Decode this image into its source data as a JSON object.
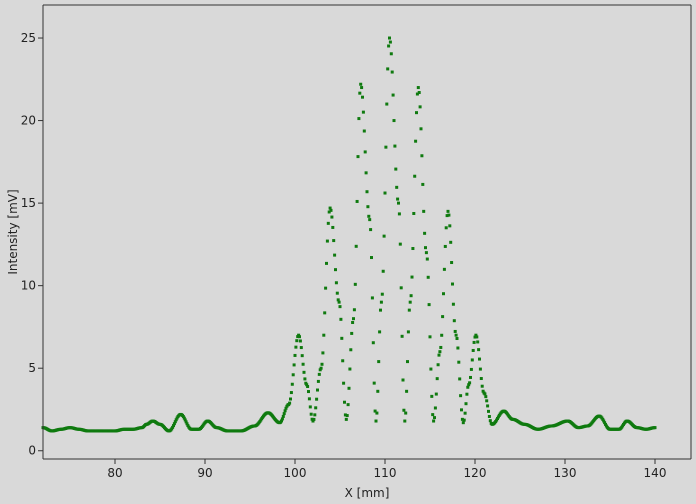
{
  "chart_data": {
    "type": "scatter",
    "xlabel": "X [mm]",
    "ylabel": "Intensity [mV]",
    "xlim": [
      72,
      144
    ],
    "ylim": [
      -0.5,
      27
    ],
    "xticks": [
      80,
      90,
      100,
      110,
      120,
      130,
      140
    ],
    "yticks": [
      0,
      5,
      10,
      15,
      20,
      25
    ],
    "grid": false,
    "legend": "none",
    "series_color": "#0f7a0f",
    "background": "#d9d9d9",
    "x_range": [
      72,
      140
    ],
    "x_step": 0.1,
    "profile_points": [
      [
        72.0,
        1.4
      ],
      [
        73.0,
        1.2
      ],
      [
        74.0,
        1.3
      ],
      [
        75.0,
        1.4
      ],
      [
        76.0,
        1.3
      ],
      [
        77.0,
        1.2
      ],
      [
        80.0,
        1.2
      ],
      [
        81.0,
        1.3
      ],
      [
        82.0,
        1.3
      ],
      [
        83.0,
        1.4
      ],
      [
        83.5,
        1.6
      ],
      [
        84.2,
        1.8
      ],
      [
        85.0,
        1.6
      ],
      [
        86.0,
        1.2
      ],
      [
        87.3,
        2.2
      ],
      [
        88.5,
        1.3
      ],
      [
        89.3,
        1.3
      ],
      [
        90.3,
        1.8
      ],
      [
        91.3,
        1.4
      ],
      [
        92.5,
        1.2
      ],
      [
        94.0,
        1.2
      ],
      [
        95.5,
        1.5
      ],
      [
        97.0,
        2.3
      ],
      [
        98.3,
        1.7
      ],
      [
        99.3,
        2.8
      ],
      [
        100.4,
        7.0
      ],
      [
        101.3,
        4.0
      ],
      [
        102.0,
        1.8
      ],
      [
        102.9,
        5.0
      ],
      [
        103.9,
        14.7
      ],
      [
        104.9,
        9.0
      ],
      [
        105.7,
        1.9
      ],
      [
        106.5,
        8.0
      ],
      [
        107.3,
        22.2
      ],
      [
        108.3,
        14.0
      ],
      [
        109.0,
        1.8
      ],
      [
        109.6,
        9.0
      ],
      [
        110.5,
        25.0
      ],
      [
        111.5,
        15.0
      ],
      [
        112.2,
        1.8
      ],
      [
        112.8,
        9.0
      ],
      [
        113.7,
        22.0
      ],
      [
        114.6,
        12.0
      ],
      [
        115.4,
        1.8
      ],
      [
        116.1,
        6.0
      ],
      [
        117.0,
        14.5
      ],
      [
        117.9,
        7.0
      ],
      [
        118.7,
        1.7
      ],
      [
        119.3,
        4.0
      ],
      [
        120.1,
        7.0
      ],
      [
        121.0,
        3.5
      ],
      [
        121.9,
        1.6
      ],
      [
        123.2,
        2.4
      ],
      [
        124.2,
        1.9
      ],
      [
        125.5,
        1.6
      ],
      [
        127.0,
        1.3
      ],
      [
        128.5,
        1.5
      ],
      [
        130.3,
        1.8
      ],
      [
        131.5,
        1.4
      ],
      [
        132.5,
        1.5
      ],
      [
        133.8,
        2.1
      ],
      [
        135.0,
        1.3
      ],
      [
        136.0,
        1.3
      ],
      [
        136.9,
        1.8
      ],
      [
        138.0,
        1.4
      ],
      [
        139.0,
        1.3
      ],
      [
        140.0,
        1.4
      ]
    ]
  }
}
